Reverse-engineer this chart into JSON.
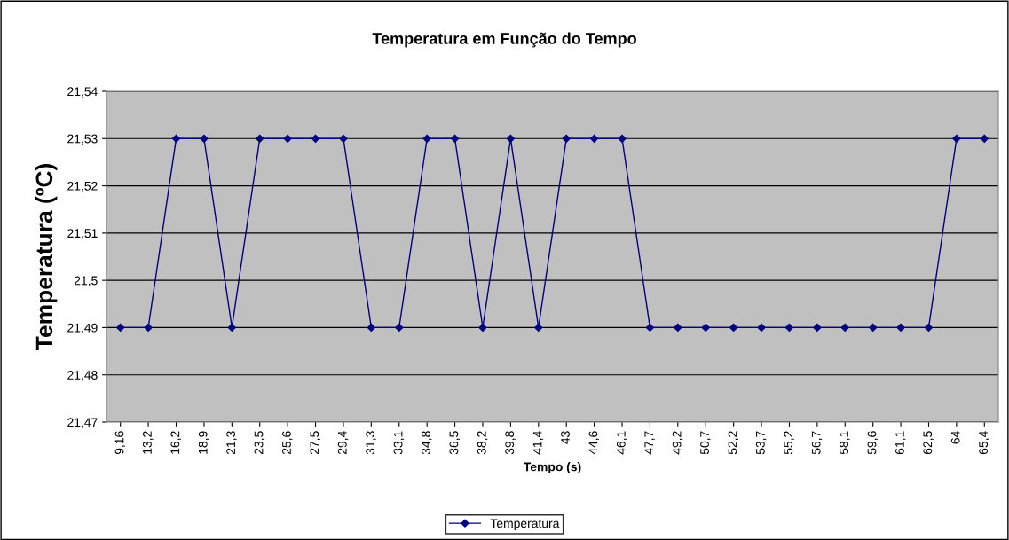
{
  "chart_data": {
    "type": "line",
    "title": "Temperatura em Função do Tempo",
    "xlabel": "Tempo (s)",
    "ylabel": "Temperatura (ºC)",
    "categories": [
      "9,16",
      "13,2",
      "16,2",
      "18,9",
      "21,3",
      "23,5",
      "25,6",
      "27,5",
      "29,4",
      "31,3",
      "33,1",
      "34,8",
      "36,5",
      "38,2",
      "39,8",
      "41,4",
      "43",
      "44,6",
      "46,1",
      "47,7",
      "49,2",
      "50,7",
      "52,2",
      "53,7",
      "55,2",
      "56,7",
      "58,1",
      "59,6",
      "61,1",
      "62,5",
      "64",
      "65,4"
    ],
    "series": [
      {
        "name": "Temperatura",
        "color": "#000080",
        "values": [
          21.49,
          21.49,
          21.53,
          21.53,
          21.49,
          21.53,
          21.53,
          21.53,
          21.53,
          21.49,
          21.49,
          21.53,
          21.53,
          21.49,
          21.53,
          21.49,
          21.53,
          21.53,
          21.53,
          21.49,
          21.49,
          21.49,
          21.49,
          21.49,
          21.49,
          21.49,
          21.49,
          21.49,
          21.49,
          21.49,
          21.53,
          21.53
        ]
      }
    ],
    "ylim": [
      21.47,
      21.54
    ],
    "yticks": [
      {
        "value": 21.47,
        "label": "21,47"
      },
      {
        "value": 21.48,
        "label": "21,48"
      },
      {
        "value": 21.49,
        "label": "21,49"
      },
      {
        "value": 21.5,
        "label": "21,5"
      },
      {
        "value": 21.51,
        "label": "21,51"
      },
      {
        "value": 21.52,
        "label": "21,52"
      },
      {
        "value": 21.53,
        "label": "21,53"
      },
      {
        "value": 21.54,
        "label": "21,54"
      }
    ],
    "grid": "y",
    "legend": "bottom",
    "marker": "diamond",
    "line_style": "solid"
  }
}
